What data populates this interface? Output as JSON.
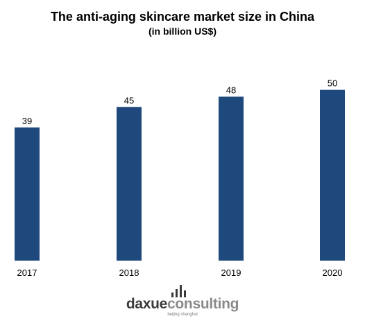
{
  "chart_data": {
    "type": "bar",
    "title": "The anti-aging skincare market size in China",
    "subtitle": "(in billion US$)",
    "categories": [
      "2017",
      "2018",
      "2019",
      "2020"
    ],
    "values": [
      39,
      45,
      48,
      50
    ],
    "ylim": [
      0,
      55
    ],
    "grid": false,
    "bar_color": "#1f497d"
  },
  "logo": {
    "part1": "daxue",
    "part2": "consulting",
    "tagline": "beijing shanghai"
  }
}
